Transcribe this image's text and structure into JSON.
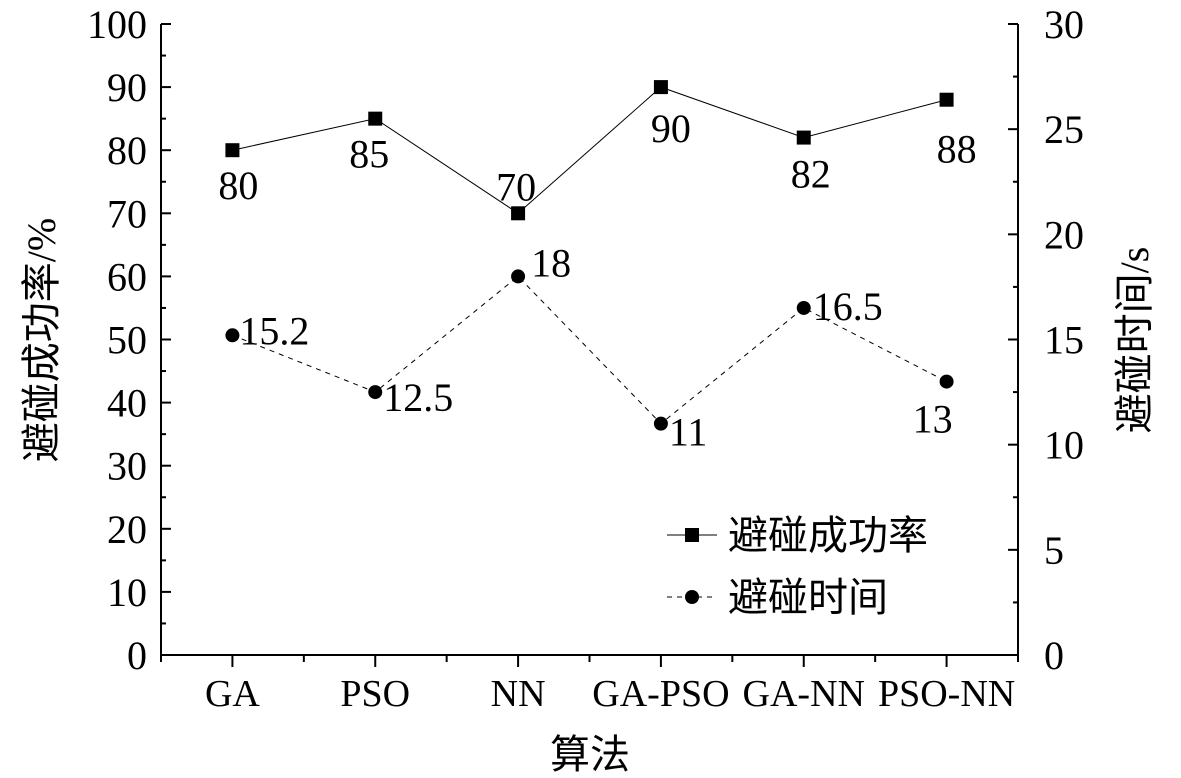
{
  "chart_data": {
    "type": "line",
    "categories": [
      "GA",
      "PSO",
      "NN",
      "GA-PSO",
      "GA-NN",
      "PSO-NN"
    ],
    "xlabel": "算法",
    "y_left": {
      "label": "避碰成功率/%",
      "lim": [
        0,
        100
      ],
      "ticks": [
        0,
        10,
        20,
        30,
        40,
        50,
        60,
        70,
        80,
        90,
        100
      ]
    },
    "y_right": {
      "label": "避碰时间/s",
      "lim": [
        0,
        30
      ],
      "ticks": [
        0,
        5,
        10,
        15,
        20,
        25,
        30
      ]
    },
    "series": [
      {
        "name": "避碰成功率",
        "axis": "left",
        "marker": "square",
        "line": "solid",
        "values": [
          80,
          85,
          70,
          90,
          82,
          88
        ],
        "labels": [
          "80",
          "85",
          "70",
          "90",
          "82",
          "88"
        ]
      },
      {
        "name": "避碰时间",
        "axis": "right",
        "marker": "circle",
        "line": "dashed",
        "values": [
          15.2,
          12.5,
          18,
          11,
          16.5,
          13
        ],
        "labels": [
          "15.2",
          "12.5",
          "18",
          "11",
          "16.5",
          "13"
        ]
      }
    ],
    "legend_position": "lower-right",
    "grid": false,
    "color": "#000000"
  }
}
